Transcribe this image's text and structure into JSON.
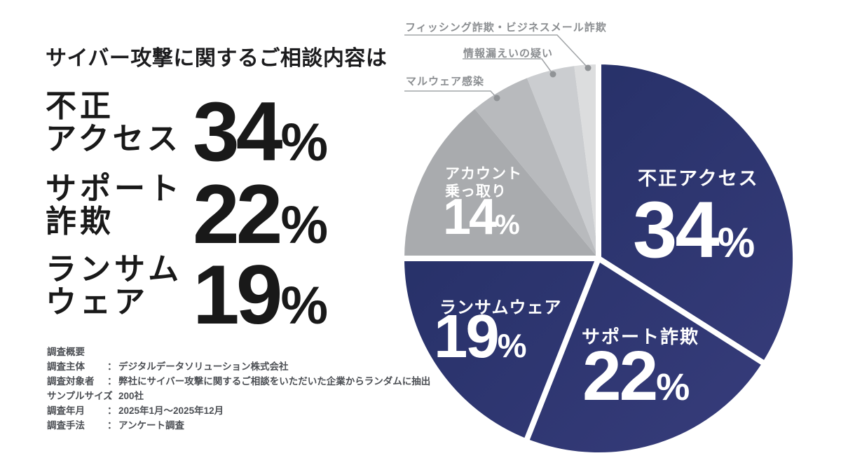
{
  "left_panel": {
    "title": "サイバー攻撃に関するご相談内容は",
    "stats": [
      {
        "label_lines": [
          "不正",
          "アクセス"
        ],
        "value": "34",
        "unit": "%"
      },
      {
        "label_lines": [
          "サポート",
          "詐欺"
        ],
        "value": "22",
        "unit": "%"
      },
      {
        "label_lines": [
          "ランサム",
          "ウェア"
        ],
        "value": "19",
        "unit": "%"
      }
    ],
    "survey": {
      "heading": "調査概要",
      "rows": [
        {
          "label": "調査主体",
          "colon": "：",
          "value": "デジタルデータソリューション株式会社"
        },
        {
          "label": "調査対象者",
          "colon": "：",
          "value": "弊社にサイバー攻撃に関するご相談をいただいた企業からランダムに抽出"
        },
        {
          "label": "サンプルサイズ",
          "colon": "：",
          "value": "200社"
        },
        {
          "label": "調査年月",
          "colon": "：",
          "value": "2025年1月〜2025年12月"
        },
        {
          "label": "調査手法",
          "colon": "：",
          "value": "アンケート調査"
        }
      ]
    }
  },
  "chart_data": {
    "type": "pie",
    "title": "サイバー攻撃に関するご相談内容は",
    "start_angle_deg": 0,
    "direction": "clockwise",
    "navy_gradient": {
      "from": "#232e64",
      "to": "#383d7c"
    },
    "line_color": "#a2a5a8",
    "dot_color": "#909396",
    "slices": [
      {
        "label": "不正アクセス",
        "value": 34,
        "value_label": "34%",
        "fill": "navy",
        "text_color": "#ffffff"
      },
      {
        "label": "サポート詐欺",
        "value": 22,
        "value_label": "22%",
        "fill": "navy",
        "text_color": "#ffffff"
      },
      {
        "label": "ランサムウェア",
        "value": 19,
        "value_label": "19%",
        "fill": "navy",
        "text_color": "#ffffff"
      },
      {
        "label": "アカウント乗っ取り",
        "label_lines": [
          "アカウント",
          "乗っ取り"
        ],
        "value": 14,
        "value_label": "14%",
        "fill": "#a9abae",
        "text_color": "#ffffff"
      },
      {
        "label": "マルウェア感染",
        "value": 5,
        "fill": "#b8babd",
        "callout": true
      },
      {
        "label": "情報漏えいの疑い",
        "value": 4,
        "fill": "#cbcdd0",
        "callout": true
      },
      {
        "label": "フィッシング詐欺・ビジネスメール詐欺",
        "value": 2,
        "fill": "#dcddde",
        "callout": true
      }
    ]
  }
}
